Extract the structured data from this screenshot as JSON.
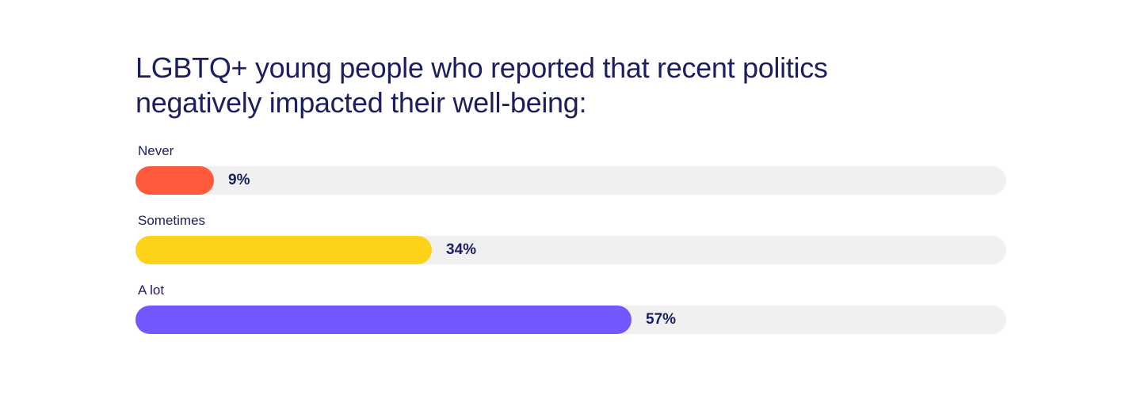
{
  "chart_data": {
    "type": "bar",
    "orientation": "horizontal",
    "title": "LGBTQ+ young people who reported that recent politics negatively impacted their well-being:",
    "categories": [
      "Never",
      "Sometimes",
      "A lot"
    ],
    "values": [
      9,
      34,
      57
    ],
    "value_labels": [
      "9%",
      "34%",
      "57%"
    ],
    "xlim": [
      0,
      100
    ],
    "grid": false,
    "colors": {
      "bars": [
        "#ff5a3c",
        "#ffd21a",
        "#7458ff"
      ],
      "track": "#f0f0f0",
      "text": "#1b1f5e"
    }
  }
}
